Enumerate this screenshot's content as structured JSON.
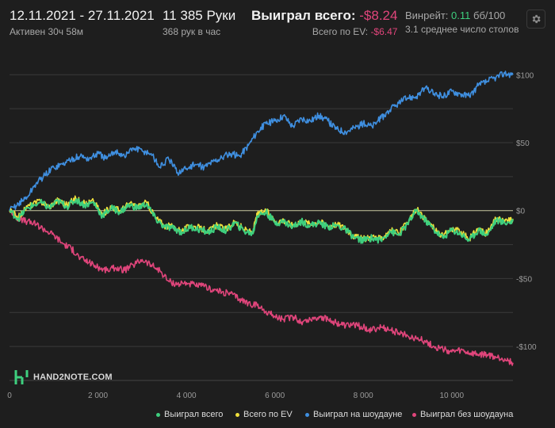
{
  "header": {
    "date_range": "12.11.2021 - 27.11.2021",
    "active_time": "Активен 30ч 58м",
    "hands": "11 385 Руки",
    "hands_per_hour": "368 рук в час",
    "won_total_label": "Выиграл всего:",
    "won_total_value": "-$8.24",
    "ev_total_label": "Всего по EV:",
    "ev_total_value": "-$6.47",
    "winrate_label": "Винрейт:",
    "winrate_value": "0.11",
    "winrate_unit": "бб/100",
    "avg_tables": "3.1 среднее число столов"
  },
  "logo_text": "HAND2NOTE.COM",
  "settings_icon": "gear-icon",
  "colors": {
    "background": "#1e1e1e",
    "won_total": "#3ecf7e",
    "ev_total": "#f0e03c",
    "showdown": "#3f8fe0",
    "non_showdown": "#e0457b",
    "grid": "#3a3a3a",
    "zero_line": "#c8c8a0"
  },
  "chart_data": {
    "type": "line",
    "xlim": [
      0,
      11385
    ],
    "ylim": [
      -125,
      120
    ],
    "x_ticks": [
      0,
      2000,
      4000,
      6000,
      8000,
      10000
    ],
    "x_tick_labels": [
      "0",
      "2 000",
      "4 000",
      "6 000",
      "8 000",
      "10 000"
    ],
    "y_ticks": [
      100,
      50,
      0,
      -50,
      -100
    ],
    "y_tick_labels": [
      "$100",
      "$50",
      "$0",
      "-$50",
      "-$100"
    ],
    "legend_position": "bottom-right",
    "grid": true,
    "series": [
      {
        "name": "Выиграл всего",
        "key": "won",
        "x": [
          0,
          200,
          400,
          700,
          900,
          1100,
          1300,
          1500,
          1700,
          1900,
          2100,
          2300,
          2500,
          2700,
          2900,
          3100,
          3300,
          3500,
          3700,
          3900,
          4100,
          4300,
          4500,
          4700,
          4900,
          5100,
          5300,
          5500,
          5600,
          5800,
          6000,
          6200,
          6400,
          6600,
          6800,
          7000,
          7200,
          7400,
          7600,
          7800,
          8000,
          8200,
          8400,
          8600,
          8800,
          9000,
          9200,
          9400,
          9600,
          9800,
          10000,
          10200,
          10400,
          10600,
          10800,
          11000,
          11200,
          11385
        ],
        "y": [
          0,
          -6,
          2,
          6,
          2,
          7,
          3,
          8,
          4,
          6,
          -4,
          2,
          -1,
          4,
          2,
          5,
          -6,
          -12,
          -13,
          -16,
          -12,
          -14,
          -16,
          -12,
          -15,
          -9,
          -15,
          -17,
          -4,
          -1,
          -9,
          -8,
          -12,
          -8,
          -11,
          -9,
          -12,
          -11,
          -14,
          -20,
          -22,
          -20,
          -22,
          -15,
          -18,
          -10,
          0,
          -7,
          -14,
          -20,
          -14,
          -17,
          -22,
          -14,
          -18,
          -7,
          -9,
          -8
        ]
      },
      {
        "name": "Всего по EV",
        "key": "ev",
        "x": [
          0,
          200,
          400,
          700,
          900,
          1100,
          1300,
          1500,
          1700,
          1900,
          2100,
          2300,
          2500,
          2700,
          2900,
          3100,
          3300,
          3500,
          3700,
          3900,
          4100,
          4300,
          4500,
          4700,
          4900,
          5100,
          5300,
          5500,
          5600,
          5800,
          6000,
          6200,
          6400,
          6600,
          6800,
          7000,
          7200,
          7400,
          7600,
          7800,
          8000,
          8200,
          8400,
          8600,
          8800,
          9000,
          9200,
          9400,
          9600,
          9800,
          10000,
          10200,
          10400,
          10600,
          10800,
          11000,
          11200,
          11385
        ],
        "y": [
          0,
          -5,
          3,
          7,
          3,
          8,
          4,
          9,
          5,
          7,
          -3,
          3,
          0,
          5,
          3,
          6,
          -5,
          -11,
          -12,
          -15,
          -11,
          -13,
          -15,
          -11,
          -14,
          -8,
          -14,
          -16,
          -3,
          0,
          -8,
          -7,
          -11,
          -7,
          -10,
          -8,
          -11,
          -10,
          -13,
          -19,
          -21,
          -19,
          -21,
          -14,
          -17,
          -9,
          1,
          -6,
          -13,
          -19,
          -13,
          -16,
          -21,
          -13,
          -17,
          -6,
          -8,
          -6
        ]
      },
      {
        "name": "Выиграл на шоудауне",
        "key": "showdown",
        "x": [
          0,
          200,
          400,
          600,
          800,
          1000,
          1200,
          1400,
          1600,
          1800,
          2000,
          2200,
          2400,
          2600,
          2800,
          3000,
          3200,
          3400,
          3600,
          3800,
          4000,
          4200,
          4400,
          4600,
          4800,
          5000,
          5200,
          5400,
          5600,
          5800,
          6000,
          6200,
          6400,
          6600,
          6800,
          7000,
          7200,
          7400,
          7600,
          7800,
          8000,
          8200,
          8400,
          8600,
          8800,
          9000,
          9200,
          9400,
          9600,
          9800,
          10000,
          10200,
          10400,
          10600,
          10800,
          11000,
          11200,
          11385
        ],
        "y": [
          0,
          5,
          10,
          20,
          26,
          32,
          34,
          38,
          40,
          38,
          42,
          38,
          44,
          40,
          46,
          44,
          42,
          32,
          38,
          28,
          31,
          34,
          32,
          36,
          39,
          42,
          40,
          48,
          58,
          64,
          66,
          70,
          62,
          68,
          66,
          70,
          66,
          60,
          58,
          61,
          64,
          62,
          68,
          74,
          79,
          83,
          84,
          90,
          86,
          84,
          88,
          86,
          84,
          92,
          95,
          98,
          101,
          100
        ]
      },
      {
        "name": "Выиграл без шоудауна",
        "key": "nonshowdown",
        "x": [
          0,
          200,
          400,
          600,
          800,
          1000,
          1200,
          1400,
          1600,
          1800,
          2000,
          2200,
          2400,
          2600,
          2800,
          3000,
          3200,
          3400,
          3600,
          3800,
          4000,
          4200,
          4400,
          4600,
          4800,
          5000,
          5200,
          5400,
          5600,
          5800,
          6000,
          6200,
          6400,
          6600,
          6800,
          7000,
          7200,
          7400,
          7600,
          7800,
          8000,
          8200,
          8400,
          8600,
          8800,
          9000,
          9200,
          9400,
          9600,
          9800,
          10000,
          10200,
          10400,
          10600,
          10800,
          11000,
          11200,
          11385
        ],
        "y": [
          0,
          -6,
          -8,
          -10,
          -14,
          -18,
          -24,
          -28,
          -35,
          -38,
          -42,
          -44,
          -42,
          -44,
          -40,
          -36,
          -40,
          -44,
          -52,
          -54,
          -53,
          -55,
          -56,
          -58,
          -60,
          -61,
          -65,
          -68,
          -70,
          -74,
          -78,
          -80,
          -78,
          -82,
          -80,
          -78,
          -80,
          -83,
          -85,
          -84,
          -86,
          -88,
          -86,
          -88,
          -90,
          -92,
          -94,
          -96,
          -100,
          -102,
          -104,
          -103,
          -105,
          -106,
          -106,
          -108,
          -109,
          -112
        ]
      }
    ]
  },
  "legend": [
    {
      "key": "won",
      "label": "Выиграл всего"
    },
    {
      "key": "ev",
      "label": "Всего по EV"
    },
    {
      "key": "showdown",
      "label": "Выиграл на шоудауне"
    },
    {
      "key": "nonshowdown",
      "label": "Выиграл без шоудауна"
    }
  ]
}
